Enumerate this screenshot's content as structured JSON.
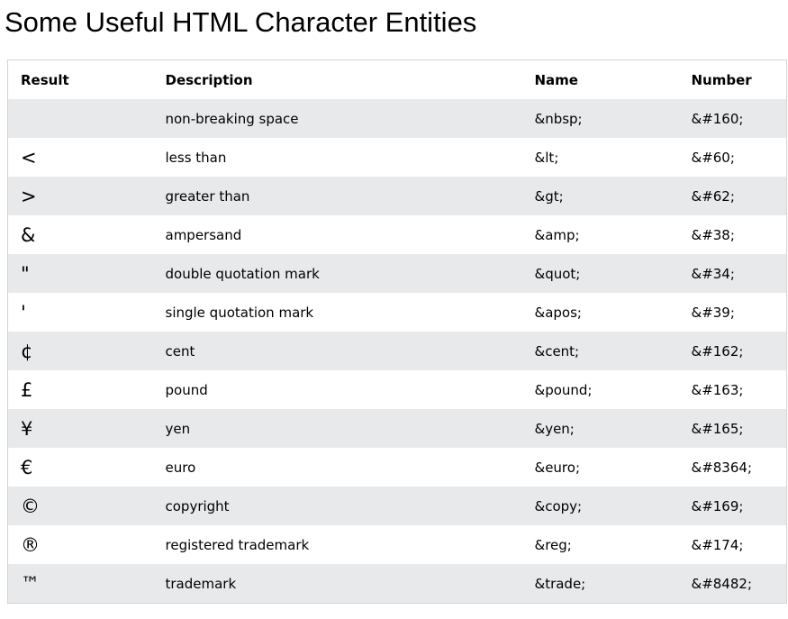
{
  "page": {
    "title": "Some Useful HTML Character Entities"
  },
  "colors": {
    "background": "#ffffff",
    "row_stripe": "#e7e9eb",
    "table_border": "#d4d4d4",
    "text": "#000000"
  },
  "table": {
    "columns": [
      "Result",
      "Description",
      "Name",
      "Number"
    ],
    "rows": [
      {
        "result": "",
        "description": "non-breaking space",
        "name": "&nbsp;",
        "number": "&#160;"
      },
      {
        "result": "<",
        "description": "less than",
        "name": "&lt;",
        "number": "&#60;"
      },
      {
        "result": ">",
        "description": "greater than",
        "name": "&gt;",
        "number": "&#62;"
      },
      {
        "result": "&",
        "description": "ampersand",
        "name": "&amp;",
        "number": "&#38;"
      },
      {
        "result": "\"",
        "description": "double quotation mark",
        "name": "&quot;",
        "number": "&#34;"
      },
      {
        "result": "'",
        "description": "single quotation mark",
        "name": "&apos;",
        "number": "&#39;"
      },
      {
        "result": "¢",
        "description": "cent",
        "name": "&cent;",
        "number": "&#162;"
      },
      {
        "result": "£",
        "description": "pound",
        "name": "&pound;",
        "number": "&#163;"
      },
      {
        "result": "¥",
        "description": "yen",
        "name": "&yen;",
        "number": "&#165;"
      },
      {
        "result": "€",
        "description": "euro",
        "name": "&euro;",
        "number": "&#8364;"
      },
      {
        "result": "©",
        "description": "copyright",
        "name": "&copy;",
        "number": "&#169;"
      },
      {
        "result": "®",
        "description": "registered trademark",
        "name": "&reg;",
        "number": "&#174;"
      },
      {
        "result": "™",
        "description": "trademark",
        "name": "&trade;",
        "number": "&#8482;"
      }
    ]
  }
}
